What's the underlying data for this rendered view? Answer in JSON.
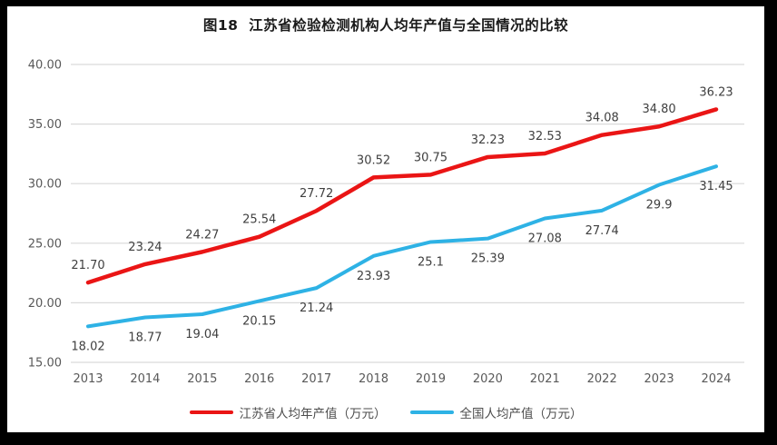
{
  "chart_data": {
    "type": "line",
    "title": "图18  江苏省检验检测机构人均年产值与全国情况的比较",
    "categories": [
      "2013",
      "2014",
      "2015",
      "2016",
      "2017",
      "2018",
      "2019",
      "2020",
      "2021",
      "2022",
      "2023",
      "2024"
    ],
    "series": [
      {
        "name": "江苏省人均年产值（万元）",
        "color": "#ea1515",
        "values": [
          21.7,
          23.24,
          24.27,
          25.54,
          27.72,
          30.52,
          30.75,
          32.23,
          32.53,
          34.08,
          34.8,
          36.23
        ],
        "labels": [
          "21.70",
          "23.24",
          "24.27",
          "25.54",
          "27.72",
          "30.52",
          "30.75",
          "32.23",
          "32.53",
          "34.08",
          "34.80",
          "36.23"
        ]
      },
      {
        "name": "全国人均产值（万元）",
        "color": "#2eb2e5",
        "values": [
          18.02,
          18.77,
          19.04,
          20.15,
          21.24,
          23.93,
          25.1,
          25.39,
          27.08,
          27.74,
          29.9,
          31.45
        ],
        "labels": [
          "18.02",
          "18.77",
          "19.04",
          "20.15",
          "21.24",
          "23.93",
          "25.1",
          "25.39",
          "27.08",
          "27.74",
          "29.9",
          "31.45"
        ]
      }
    ],
    "ylim": [
      15,
      40
    ],
    "ytick_labels": [
      "40.00",
      "35.00",
      "30.00",
      "25.00",
      "20.00",
      "15.00"
    ],
    "xlabel": "",
    "ylabel": "",
    "grid": true,
    "legend_position": "bottom",
    "grid_color": "#d9d9d9",
    "axis_label_color": "#595959",
    "data_label_color": "#3f3f3f"
  }
}
